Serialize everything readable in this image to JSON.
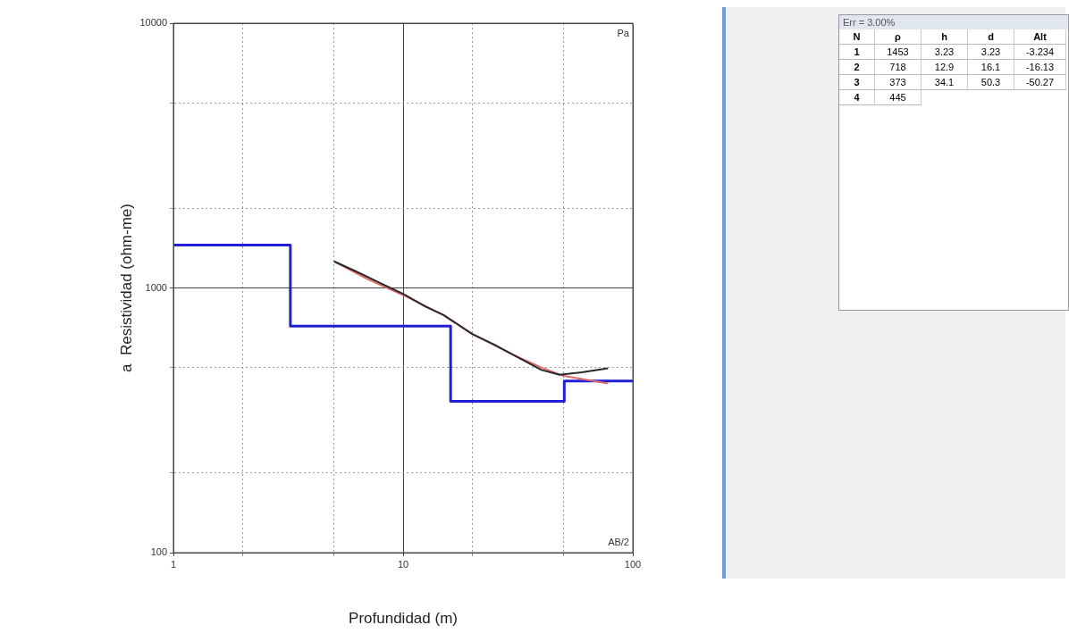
{
  "chart_data": {
    "type": "line",
    "xlabel": "Profundidad (m)",
    "ylabel": "a  Resistividad (ohm-me)",
    "xlim": [
      1,
      100
    ],
    "ylim": [
      100,
      10000
    ],
    "xticks": [
      1,
      {
        "value": 2,
        "label": null
      },
      {
        "value": 5,
        "label": null
      },
      10,
      {
        "value": 20,
        "label": null
      },
      {
        "value": 50,
        "label": null
      },
      100
    ],
    "yticks": [
      100,
      {
        "value": 200,
        "label": null
      },
      {
        "value": 500,
        "label": null
      },
      1000,
      {
        "value": 2000,
        "label": null
      },
      {
        "value": 5000,
        "label": null
      },
      10000
    ],
    "log": "xy",
    "grid": true,
    "legend": false,
    "series": [
      {
        "type": "step",
        "color": "#1f1fd6",
        "x": [
          1,
          3.23,
          16.1,
          50.3,
          100
        ],
        "values": [
          1453,
          718,
          373,
          445,
          445
        ]
      },
      {
        "type": "line",
        "color": "#e36a6a",
        "x": [
          5.1,
          7,
          10,
          15,
          20,
          30,
          40,
          50,
          78
        ],
        "values": [
          1250,
          1080,
          940,
          790,
          670,
          560,
          500,
          465,
          436
        ]
      },
      {
        "type": "line",
        "color": "#2a2a2a",
        "x": [
          5,
          6.3,
          8,
          10,
          12.5,
          15,
          20,
          25,
          30,
          40,
          48,
          60,
          78
        ],
        "values": [
          1260,
          1150,
          1040,
          950,
          850,
          790,
          670,
          610,
          560,
          490,
          470,
          480,
          497
        ]
      }
    ],
    "annotations": [
      "Pa",
      "AB/2",
      "Err = 3.00%",
      "N",
      "ρ",
      "h",
      "d",
      "Alt",
      "1",
      "1453",
      "3.23",
      "3.23",
      "-3.234",
      "2",
      "718",
      "12.9",
      "16.1",
      "-16.13",
      "3",
      "373",
      "34.1",
      "50.3",
      "-50.27",
      "4",
      "445"
    ]
  }
}
